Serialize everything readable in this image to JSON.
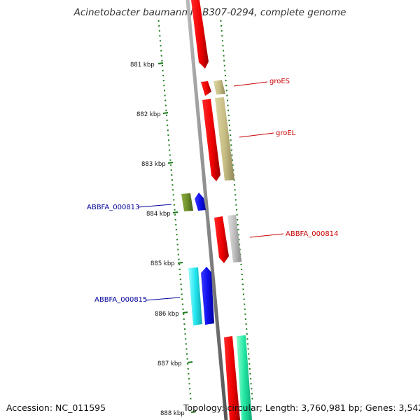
{
  "title": "Acinetobacter baumannii AB307-0294, complete genome",
  "accession": "Accession: NC_011595",
  "stats": "Topology: circular; Length: 3,760,981 bp; Genes: 3,542",
  "ticks": [
    "881 kbp",
    "882 kbp",
    "883 kbp",
    "884 kbp",
    "885 kbp",
    "886 kbp",
    "887 kbp",
    "888 kbp"
  ],
  "gene_labels": {
    "groES": "groES",
    "groEL": "groEL",
    "abbfa_000813": "ABBFA_000813",
    "abbfa_000814": "ABBFA_000814",
    "abbfa_000815": "ABBFA_000815"
  },
  "colors": {
    "forward_label": "#cc0000",
    "reverse_label": "#000099",
    "tick": "#1a7a1a",
    "backbone": "#7a7a7a"
  }
}
